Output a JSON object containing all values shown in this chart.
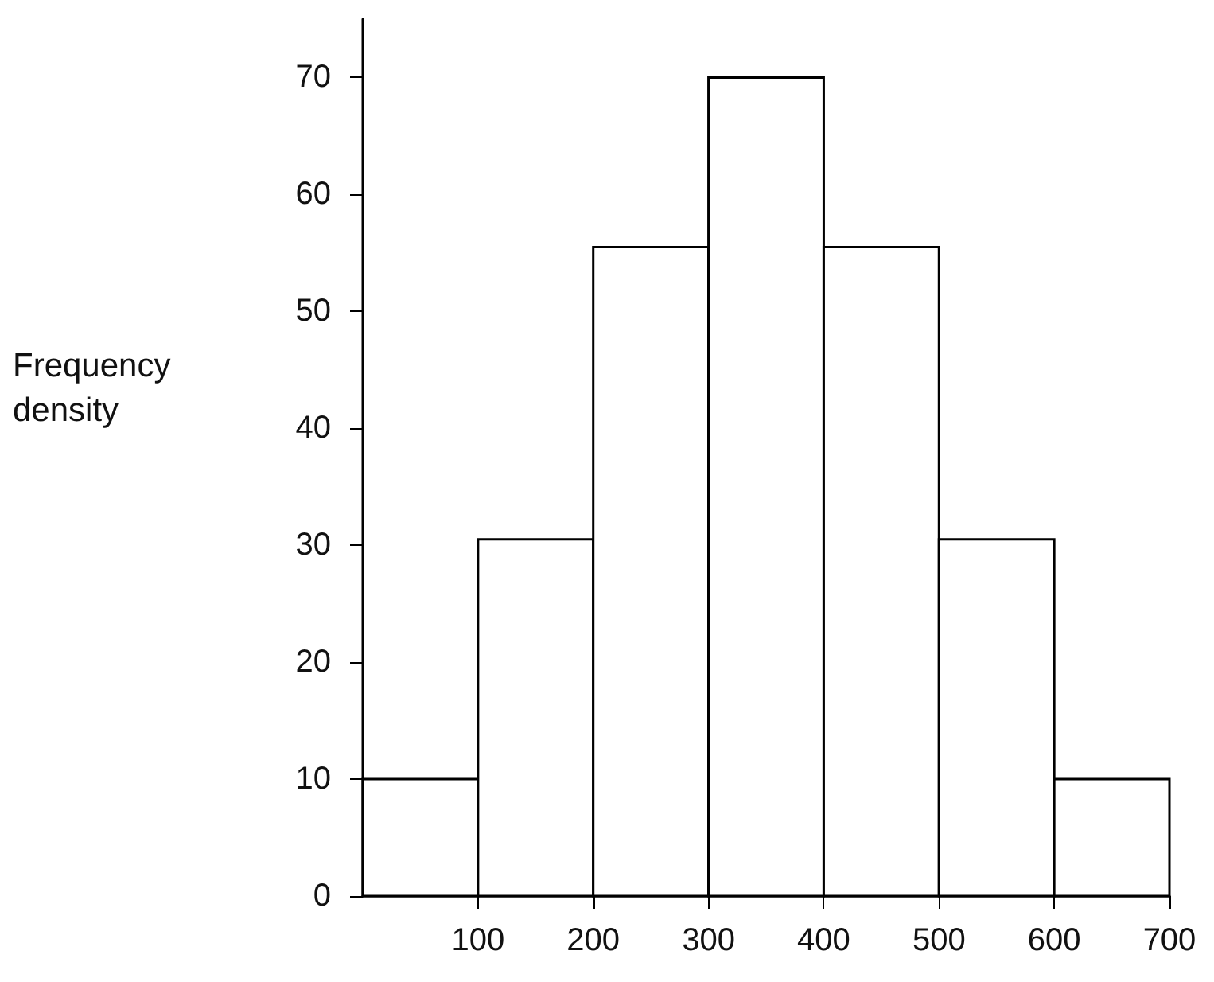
{
  "chart_data": {
    "type": "histogram",
    "ylabel": "Frequency density",
    "bins": [
      0,
      100,
      200,
      300,
      400,
      500,
      600,
      700
    ],
    "values": [
      10,
      30.5,
      55.5,
      70,
      55.5,
      30.5,
      10
    ],
    "color": "#ffffff",
    "xlim": [
      0,
      700
    ],
    "xticks": [
      100,
      200,
      300,
      400,
      500,
      600,
      700
    ],
    "ylim": [
      0,
      75
    ],
    "yticks": [
      0,
      10,
      20,
      30,
      40,
      50,
      60,
      70
    ],
    "grid": false
  }
}
